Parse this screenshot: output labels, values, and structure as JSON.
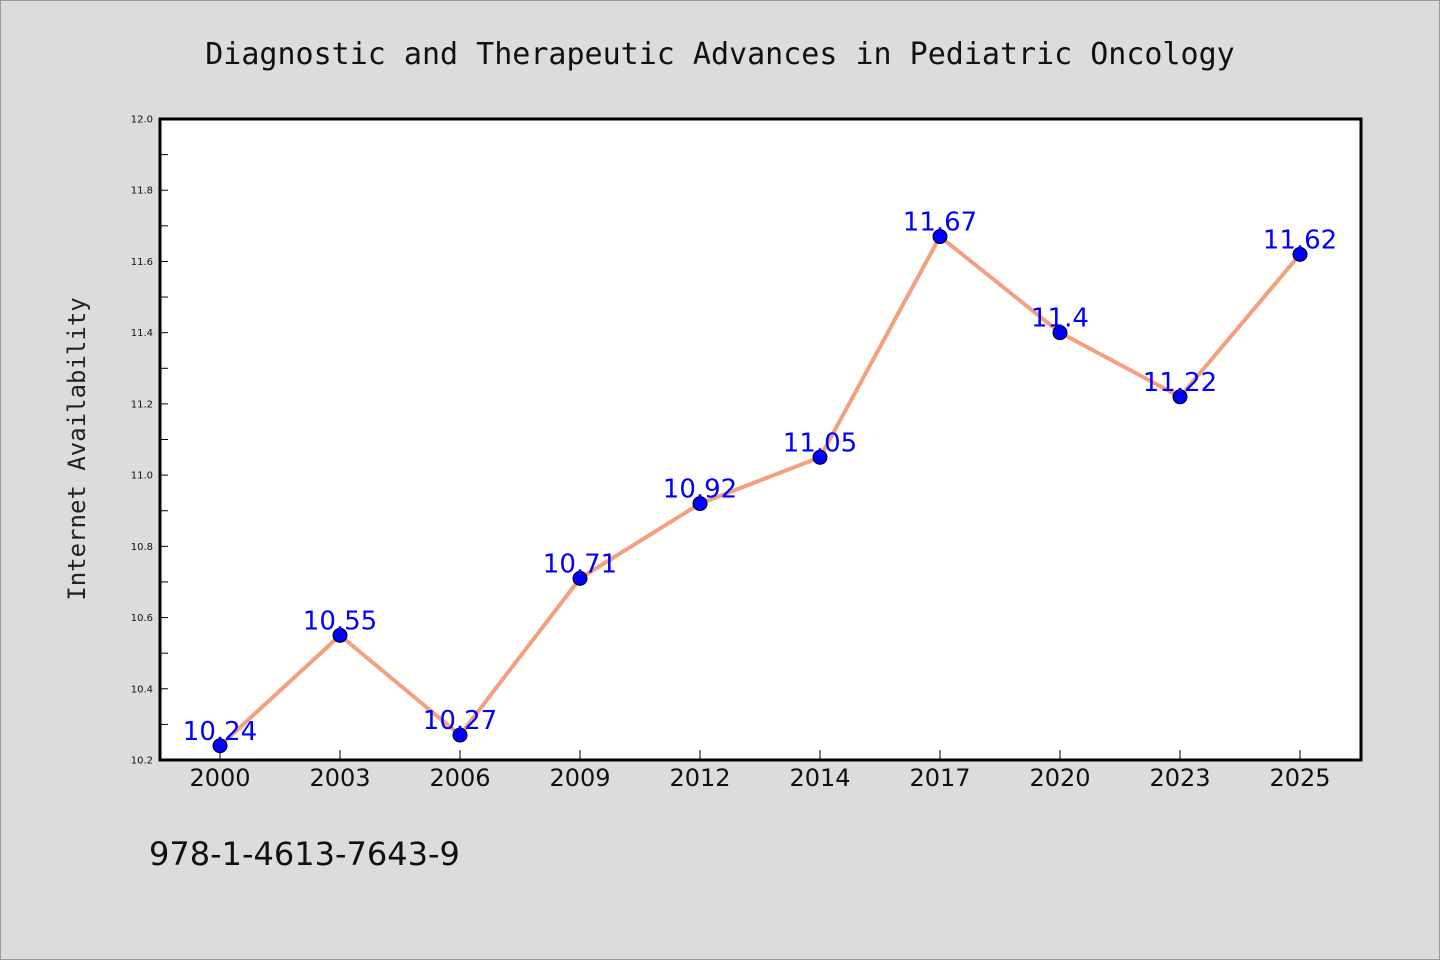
{
  "chart_data": {
    "type": "line",
    "title": "Diagnostic and Therapeutic Advances in Pediatric Oncology",
    "xlabel": "",
    "ylabel": "Internet Availability",
    "categories": [
      "2000",
      "2003",
      "2006",
      "2009",
      "2012",
      "2014",
      "2017",
      "2020",
      "2023",
      "2025"
    ],
    "series": [
      {
        "values": [
          10.24,
          10.55,
          10.27,
          10.71,
          10.92,
          11.05,
          11.67,
          11.4,
          11.22,
          11.62
        ],
        "line_color": "#f4a07f",
        "marker_color": "#0000ff"
      }
    ],
    "data_labels": [
      "10.24",
      "10.55",
      "10.27",
      "10.71",
      "10.92",
      "11.05",
      "11.67",
      "11.4",
      "11.22",
      "11.62"
    ],
    "ylim": [
      10.2,
      12.0
    ],
    "yticks": [
      10.2,
      10.4,
      10.6,
      10.8,
      11.0,
      11.2,
      11.4,
      11.6,
      11.8,
      12.0
    ],
    "ytick_labels": [
      "10.2",
      "10.4",
      "10.6",
      "10.8",
      "11.0",
      "11.2",
      "11.4",
      "11.6",
      "11.8",
      "12.0"
    ],
    "grid": false,
    "legend": "none"
  },
  "footer": {
    "isbn": "978-1-4613-7643-9"
  },
  "colors": {
    "background": "#dcdcdc",
    "plot_background": "#ffffff",
    "line": "#f4a07f",
    "marker": "#0000ff",
    "data_label": "#0000ff"
  }
}
